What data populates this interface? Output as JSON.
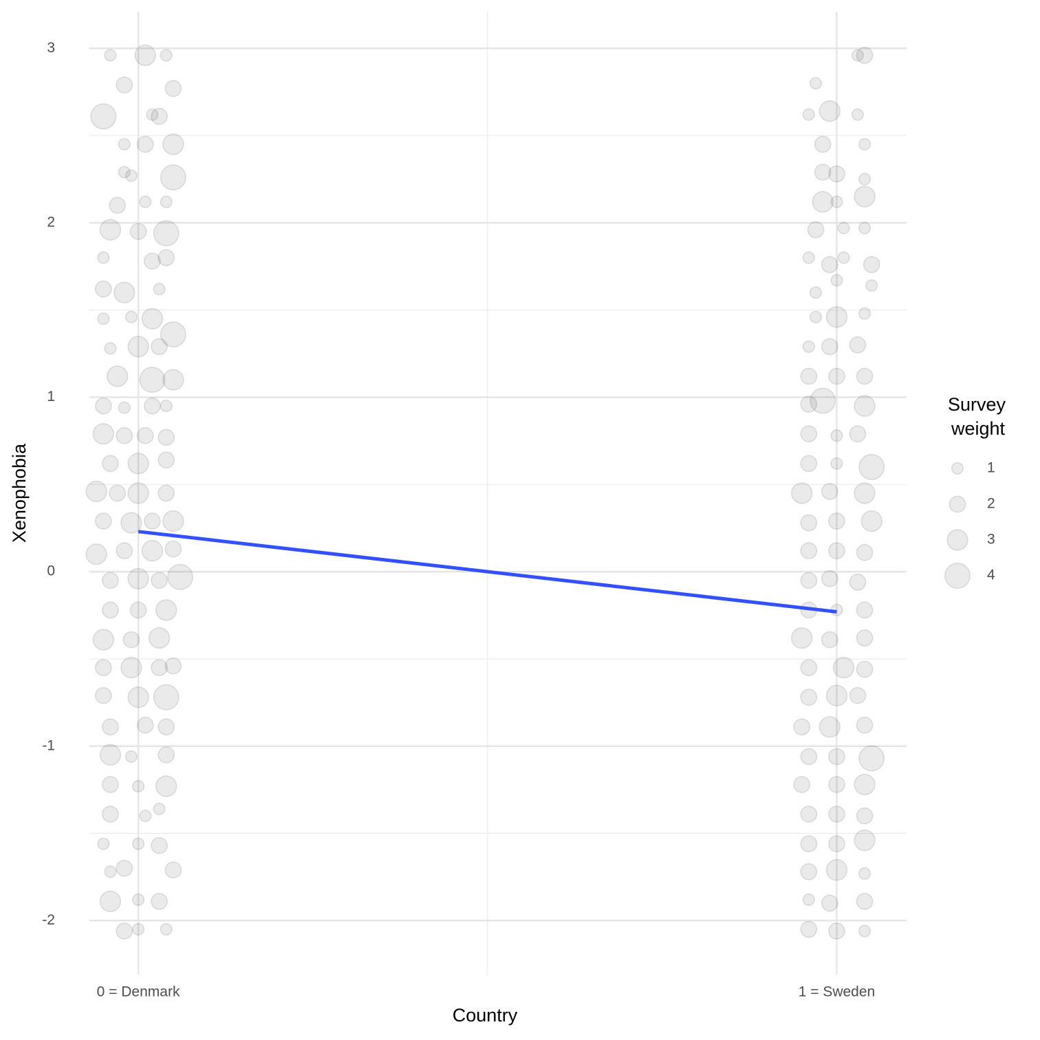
{
  "chart_data": {
    "type": "scatter",
    "xlabel": "Country",
    "ylabel": "Xenophobia",
    "xlim": [
      -0.07,
      1.1
    ],
    "ylim": [
      -2.31,
      3.21
    ],
    "xticks": [
      {
        "value": 0,
        "label": "0 = Denmark"
      },
      {
        "value": 1,
        "label": "1 = Sweden"
      }
    ],
    "yticks": [
      -2,
      -1,
      0,
      1,
      2,
      3
    ],
    "x_minor_grid": [
      0.5
    ],
    "y_minor_grid": [
      -1.5,
      -0.5,
      0.5,
      1.5,
      2.5
    ],
    "grid": true,
    "point_color": "#333333",
    "point_alpha": 0.1,
    "series": [
      {
        "x": [
          -0.04,
          0.01,
          0.04,
          -0.02,
          0.05,
          -0.05,
          0.02,
          0.03,
          -0.02,
          0.01,
          0.05,
          -0.02,
          0.05,
          -0.01,
          -0.03,
          0.01,
          0.04,
          -0.04,
          0.0,
          0.04,
          -0.05,
          0.02,
          0.04,
          -0.05,
          -0.02,
          0.03,
          -0.05,
          -0.01,
          0.02,
          0.05,
          -0.04,
          0.0,
          0.03,
          -0.03,
          0.02,
          0.05,
          -0.05,
          -0.02,
          0.02,
          0.04,
          -0.05,
          -0.02,
          0.01,
          0.04,
          -0.04,
          0.0,
          0.04,
          -0.06,
          -0.03,
          0.0,
          0.04,
          -0.05,
          -0.01,
          0.02,
          0.05,
          -0.06,
          -0.02,
          0.02,
          0.05,
          -0.04,
          0.0,
          0.03,
          0.06,
          -0.04,
          0.0,
          0.04,
          -0.05,
          -0.01,
          0.03,
          -0.05,
          -0.01,
          0.03,
          0.05,
          -0.05,
          0.0,
          0.04,
          -0.04,
          0.01,
          0.04,
          -0.04,
          -0.01,
          0.04,
          -0.04,
          0.0,
          0.04,
          -0.04,
          0.01,
          0.03,
          -0.05,
          0.0,
          0.03,
          -0.04,
          -0.02,
          0.05,
          -0.04,
          0.0,
          0.03,
          -0.02,
          0.0,
          0.04
        ],
        "y": [
          2.96,
          2.96,
          2.96,
          2.79,
          2.77,
          2.61,
          2.62,
          2.61,
          2.45,
          2.45,
          2.45,
          2.29,
          2.26,
          2.27,
          2.1,
          2.12,
          2.12,
          1.96,
          1.95,
          1.94,
          1.8,
          1.78,
          1.8,
          1.62,
          1.6,
          1.62,
          1.45,
          1.46,
          1.45,
          1.36,
          1.28,
          1.29,
          1.29,
          1.12,
          1.1,
          1.1,
          0.95,
          0.94,
          0.95,
          0.95,
          0.79,
          0.78,
          0.78,
          0.77,
          0.62,
          0.62,
          0.64,
          0.46,
          0.45,
          0.45,
          0.45,
          0.29,
          0.28,
          0.29,
          0.29,
          0.1,
          0.12,
          0.12,
          0.13,
          -0.05,
          -0.04,
          -0.05,
          -0.03,
          -0.22,
          -0.22,
          -0.22,
          -0.39,
          -0.39,
          -0.38,
          -0.55,
          -0.55,
          -0.55,
          -0.54,
          -0.71,
          -0.72,
          -0.72,
          -0.89,
          -0.88,
          -0.89,
          -1.05,
          -1.06,
          -1.05,
          -1.22,
          -1.23,
          -1.23,
          -1.39,
          -1.4,
          -1.36,
          -1.56,
          -1.56,
          -1.57,
          -1.72,
          -1.7,
          -1.71,
          -1.89,
          -1.88,
          -1.89,
          -2.06,
          -2.05,
          -2.05
        ],
        "size": [
          1,
          3,
          1,
          2,
          2,
          4,
          1,
          2,
          1,
          2,
          3,
          1,
          4,
          1,
          2,
          1,
          1,
          3,
          2,
          4,
          1,
          2,
          2,
          2,
          3,
          1,
          1,
          1,
          3,
          4,
          1,
          3,
          2,
          3,
          4,
          3,
          2,
          1,
          2,
          1,
          3,
          2,
          2,
          2,
          2,
          3,
          2,
          3,
          2,
          3,
          2,
          2,
          3,
          2,
          3,
          3,
          2,
          3,
          2,
          2,
          3,
          2,
          4,
          2,
          2,
          3,
          3,
          2,
          3,
          2,
          3,
          2,
          2,
          2,
          3,
          4,
          2,
          2,
          2,
          3,
          1,
          2,
          2,
          1,
          3,
          2,
          1,
          1,
          1,
          1,
          2,
          1,
          2,
          2,
          3,
          1,
          2,
          2,
          1,
          1
        ]
      },
      {
        "x": [
          1.03,
          1.04,
          0.97,
          0.96,
          0.99,
          1.03,
          0.98,
          1.04,
          0.98,
          1.0,
          1.04,
          0.98,
          1.0,
          1.04,
          0.97,
          1.01,
          1.04,
          0.96,
          0.99,
          1.01,
          1.05,
          0.97,
          1.0,
          1.05,
          0.97,
          1.0,
          1.04,
          0.96,
          0.99,
          1.03,
          0.96,
          1.0,
          1.04,
          0.96,
          0.98,
          1.04,
          0.96,
          1.0,
          1.03,
          0.96,
          1.0,
          1.05,
          0.95,
          0.99,
          1.04,
          0.96,
          1.0,
          1.05,
          0.96,
          1.0,
          1.04,
          0.96,
          0.99,
          1.03,
          0.96,
          1.0,
          1.04,
          0.95,
          0.99,
          1.04,
          0.96,
          1.01,
          1.04,
          0.96,
          1.0,
          1.03,
          0.95,
          0.99,
          1.04,
          0.96,
          1.0,
          1.05,
          0.95,
          1.0,
          1.04,
          0.96,
          1.0,
          1.04,
          0.96,
          1.0,
          1.04,
          0.96,
          1.0,
          1.04,
          0.96,
          0.99,
          1.04,
          0.96,
          1.0,
          1.04
        ],
        "y": [
          2.96,
          2.96,
          2.8,
          2.62,
          2.64,
          2.62,
          2.45,
          2.45,
          2.29,
          2.28,
          2.25,
          2.12,
          2.12,
          2.15,
          1.96,
          1.97,
          1.97,
          1.8,
          1.76,
          1.8,
          1.76,
          1.6,
          1.67,
          1.64,
          1.46,
          1.46,
          1.48,
          1.29,
          1.29,
          1.3,
          1.12,
          1.12,
          1.12,
          0.96,
          0.98,
          0.95,
          0.79,
          0.78,
          0.79,
          0.62,
          0.62,
          0.6,
          0.45,
          0.46,
          0.45,
          0.28,
          0.29,
          0.29,
          0.12,
          0.12,
          0.11,
          -0.05,
          -0.04,
          -0.06,
          -0.22,
          -0.22,
          -0.22,
          -0.38,
          -0.39,
          -0.38,
          -0.55,
          -0.55,
          -0.56,
          -0.72,
          -0.71,
          -0.71,
          -0.89,
          -0.89,
          -0.88,
          -1.06,
          -1.06,
          -1.07,
          -1.22,
          -1.22,
          -1.22,
          -1.39,
          -1.39,
          -1.4,
          -1.56,
          -1.56,
          -1.54,
          -1.72,
          -1.71,
          -1.73,
          -1.88,
          -1.9,
          -1.89,
          -2.05,
          -2.06,
          -2.06
        ],
        "size": [
          1,
          2,
          1,
          1,
          3,
          1,
          2,
          1,
          2,
          2,
          1,
          3,
          1,
          3,
          2,
          1,
          1,
          1,
          2,
          1,
          2,
          1,
          1,
          1,
          1,
          3,
          1,
          1,
          2,
          2,
          2,
          2,
          2,
          2,
          4,
          3,
          2,
          1,
          2,
          2,
          1,
          4,
          3,
          2,
          3,
          2,
          2,
          3,
          2,
          2,
          2,
          2,
          2,
          2,
          2,
          1,
          2,
          3,
          2,
          2,
          2,
          3,
          2,
          2,
          3,
          2,
          2,
          3,
          2,
          2,
          2,
          4,
          2,
          2,
          3,
          2,
          2,
          2,
          2,
          2,
          3,
          2,
          3,
          1,
          1,
          2,
          2,
          2,
          2,
          1
        ]
      }
    ],
    "fit_line": {
      "x": [
        0,
        1
      ],
      "y": [
        0.23,
        -0.23
      ],
      "color": "#3350ff"
    },
    "size_legend": {
      "title": [
        "Survey",
        "weight"
      ],
      "values": [
        1,
        2,
        3,
        4
      ]
    }
  }
}
